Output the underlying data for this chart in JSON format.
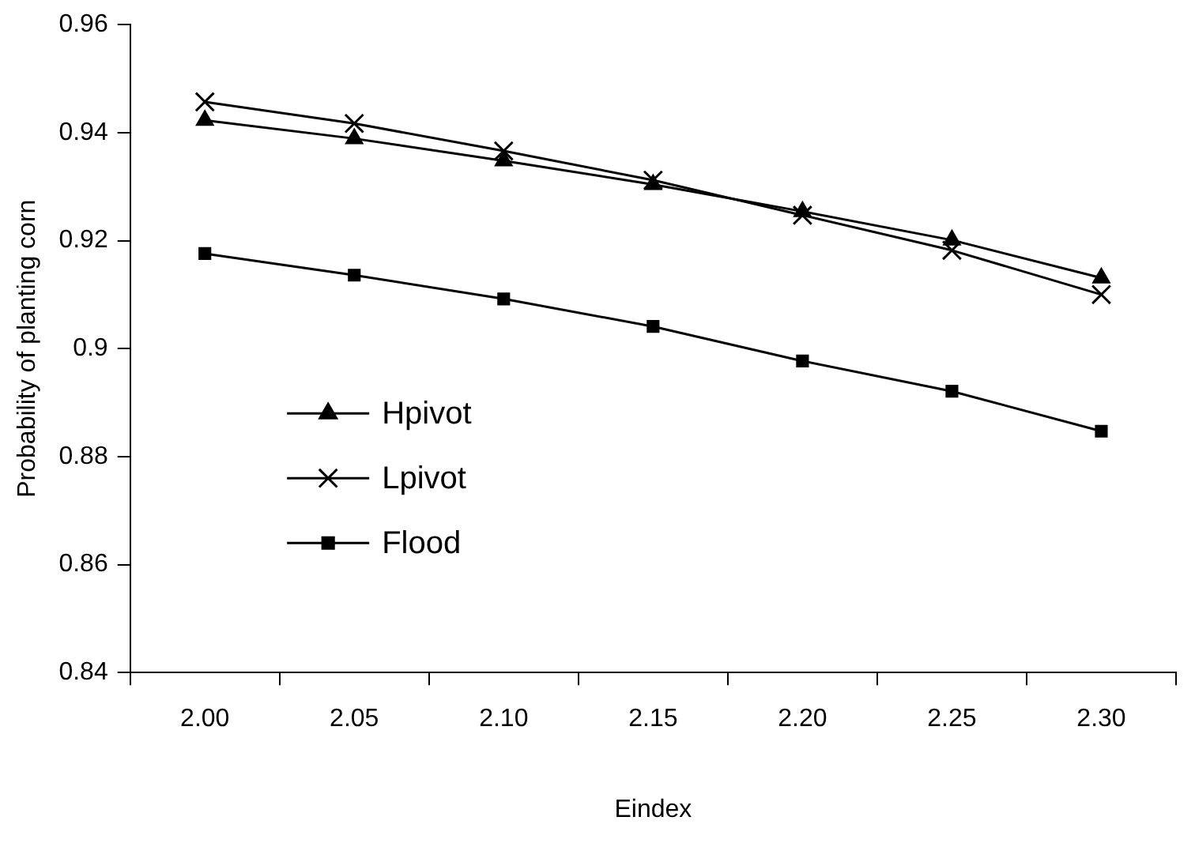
{
  "chart_data": {
    "type": "line",
    "xlabel": "Eindex",
    "ylabel": "Probability of planting corn",
    "categories": [
      "2.00",
      "2.05",
      "2.10",
      "2.15",
      "2.20",
      "2.25",
      "2.30"
    ],
    "ylim": [
      0.84,
      0.96
    ],
    "yticks": [
      {
        "value": 0.84,
        "label": "0.84"
      },
      {
        "value": 0.86,
        "label": "0.86"
      },
      {
        "value": 0.88,
        "label": "0.88"
      },
      {
        "value": 0.9,
        "label": "0.9"
      },
      {
        "value": 0.92,
        "label": "0.92"
      },
      {
        "value": 0.94,
        "label": "0.94"
      },
      {
        "value": 0.96,
        "label": "0.96"
      }
    ],
    "grid": false,
    "legend": "bottom left",
    "line_style": "solid",
    "series": [
      {
        "name": "Hpivot",
        "color": "#000000",
        "marker": "triangle",
        "values": [
          0.9423,
          0.9389,
          0.9348,
          0.9304,
          0.9254,
          0.9201,
          0.9131
        ]
      },
      {
        "name": "Lpivot",
        "color": "#000000",
        "marker": "cross",
        "values": [
          0.9457,
          0.9417,
          0.9366,
          0.9312,
          0.9247,
          0.9182,
          0.91
        ]
      },
      {
        "name": "Flood",
        "color": "#000000",
        "marker": "square",
        "values": [
          0.9176,
          0.9136,
          0.9092,
          0.9041,
          0.8977,
          0.8921,
          0.8847
        ]
      }
    ]
  }
}
